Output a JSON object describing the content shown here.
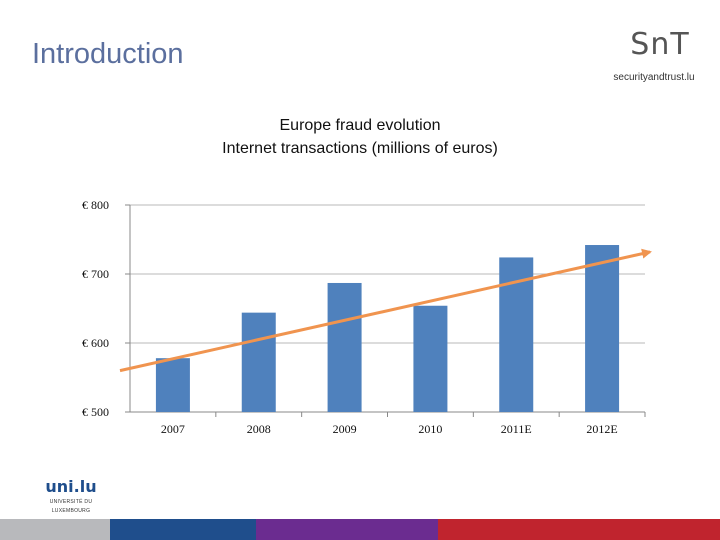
{
  "slide": {
    "title": "Introduction"
  },
  "logos": {
    "snt_mark": "SnT",
    "snt_sub": "securityandtrust.lu",
    "uni_mark": "uni.lu",
    "uni_sub_1": "UNIVERSITÉ DU",
    "uni_sub_2": "LUXEMBOURG"
  },
  "chart_data": {
    "type": "bar",
    "title": "Europe fraud evolution",
    "subtitle": "Internet transactions (millions of euros)",
    "categories": [
      "2007",
      "2008",
      "2009",
      "2010",
      "2011E",
      "2012E"
    ],
    "values": [
      578,
      644,
      687,
      654,
      724,
      742
    ],
    "ylim": [
      500,
      800
    ],
    "yticks": [
      500,
      600,
      700,
      800
    ],
    "ytick_labels": [
      "€  500",
      "€  600",
      "€  700",
      "€  800"
    ],
    "grid": true,
    "trendline": {
      "start": 560,
      "end": 732
    },
    "colors": {
      "bar": "#4f81bd",
      "trend": "#f0944f",
      "grid": "#b9b9b9",
      "axis": "#888888"
    }
  },
  "footer_colors": [
    "#b8b9bc",
    "#1f4e8c",
    "#6b2c90",
    "#c0242e"
  ]
}
